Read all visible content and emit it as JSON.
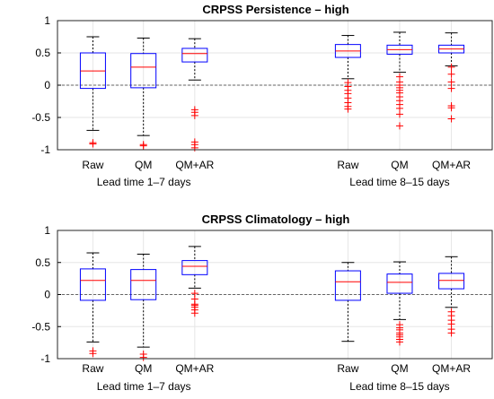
{
  "chart_data": [
    {
      "type": "box",
      "title": "CRPSS Persistence – high",
      "ylim": [
        -1,
        1
      ],
      "yticks": [
        -1,
        -0.5,
        0,
        0.5,
        1
      ],
      "ytick_labels": [
        "-1",
        "-0.5",
        "0",
        "0.5",
        "1"
      ],
      "grid": true,
      "reference_line": 0,
      "colors": {
        "box": "#0000ff",
        "median": "#ff0000",
        "whisker": "#000000",
        "outlier": "#ff0000",
        "grid": "#e6e6e6"
      },
      "groups": [
        {
          "label": "Lead time 1–7 days",
          "boxes": [
            {
              "category": "Raw",
              "whisker_low": -0.7,
              "q1": -0.05,
              "median": 0.22,
              "q3": 0.5,
              "whisker_high": 0.75,
              "outliers": [
                -0.89,
                -0.91
              ]
            },
            {
              "category": "QM",
              "whisker_low": -0.78,
              "q1": -0.04,
              "median": 0.28,
              "q3": 0.49,
              "whisker_high": 0.73,
              "outliers": [
                -0.92,
                -0.94
              ]
            },
            {
              "category": "QM+AR",
              "whisker_low": 0.08,
              "q1": 0.36,
              "median": 0.49,
              "q3": 0.57,
              "whisker_high": 0.72,
              "outliers": [
                -0.38,
                -0.42,
                -0.47,
                -0.88,
                -0.92,
                -0.97
              ]
            }
          ]
        },
        {
          "label": "Lead time 8–15 days",
          "boxes": [
            {
              "category": "Raw",
              "whisker_low": 0.1,
              "q1": 0.43,
              "median": 0.53,
              "q3": 0.63,
              "whisker_high": 0.77,
              "outliers": [
                0.04,
                -0.02,
                -0.08,
                -0.13,
                -0.2,
                -0.27,
                -0.33,
                -0.37
              ]
            },
            {
              "category": "QM",
              "whisker_low": 0.2,
              "q1": 0.48,
              "median": 0.55,
              "q3": 0.62,
              "whisker_high": 0.82,
              "outliers": [
                0.13,
                0.05,
                0.0,
                -0.04,
                -0.08,
                -0.12,
                -0.18,
                -0.24,
                -0.3,
                -0.36,
                -0.45,
                -0.63
              ]
            },
            {
              "category": "QM+AR",
              "whisker_low": 0.3,
              "q1": 0.5,
              "median": 0.56,
              "q3": 0.62,
              "whisker_high": 0.81,
              "outliers": [
                0.28,
                0.17,
                0.05,
                -0.05,
                -0.32,
                -0.35,
                -0.52
              ]
            }
          ]
        }
      ]
    },
    {
      "type": "box",
      "title": "CRPSS Climatology – high",
      "ylim": [
        -1,
        1
      ],
      "yticks": [
        -1,
        -0.5,
        0,
        0.5,
        1
      ],
      "ytick_labels": [
        "-1",
        "-0.5",
        "0",
        "0.5",
        "1"
      ],
      "grid": true,
      "reference_line": 0,
      "colors": {
        "box": "#0000ff",
        "median": "#ff0000",
        "whisker": "#000000",
        "outlier": "#ff0000",
        "grid": "#e6e6e6"
      },
      "groups": [
        {
          "label": "Lead time 1–7 days",
          "boxes": [
            {
              "category": "Raw",
              "whisker_low": -0.74,
              "q1": -0.09,
              "median": 0.22,
              "q3": 0.4,
              "whisker_high": 0.65,
              "outliers": [
                -0.88,
                -0.92
              ]
            },
            {
              "category": "QM",
              "whisker_low": -0.82,
              "q1": -0.08,
              "median": 0.22,
              "q3": 0.39,
              "whisker_high": 0.63,
              "outliers": [
                -0.93,
                -0.98
              ]
            },
            {
              "category": "QM+AR",
              "whisker_low": 0.1,
              "q1": 0.31,
              "median": 0.44,
              "q3": 0.53,
              "whisker_high": 0.75,
              "outliers": [
                0.02,
                -0.07,
                -0.15,
                -0.17,
                -0.2,
                -0.24,
                -0.29
              ]
            }
          ]
        },
        {
          "label": "Lead time 8–15 days",
          "boxes": [
            {
              "category": "Raw",
              "whisker_low": -0.73,
              "q1": -0.09,
              "median": 0.2,
              "q3": 0.37,
              "whisker_high": 0.5,
              "outliers": []
            },
            {
              "category": "QM",
              "whisker_low": -0.39,
              "q1": 0.02,
              "median": 0.19,
              "q3": 0.32,
              "whisker_high": 0.51,
              "outliers": [
                -0.47,
                -0.52,
                -0.55,
                -0.6,
                -0.63,
                -0.66,
                -0.7,
                -0.74
              ]
            },
            {
              "category": "QM+AR",
              "whisker_low": -0.2,
              "q1": 0.09,
              "median": 0.22,
              "q3": 0.33,
              "whisker_high": 0.59,
              "outliers": [
                -0.27,
                -0.33,
                -0.4,
                -0.46,
                -0.54,
                -0.6
              ]
            }
          ]
        }
      ]
    }
  ]
}
